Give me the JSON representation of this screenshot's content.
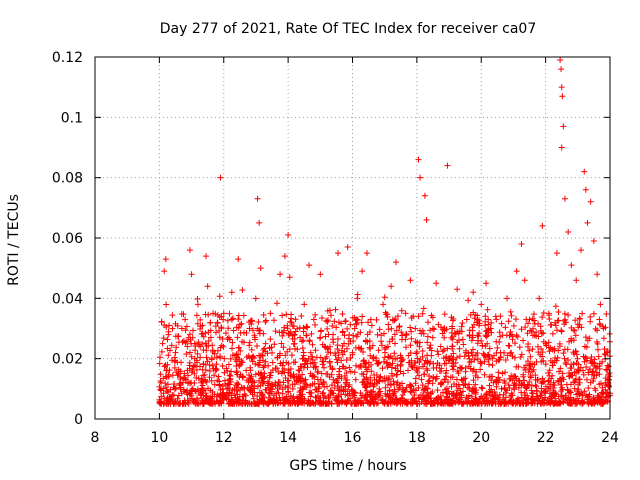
{
  "chart_data": {
    "type": "scatter",
    "title": "Day 277 of 2021, Rate Of TEC Index for receiver ca07",
    "xlabel": "GPS time / hours",
    "ylabel": "ROTI / TECUs",
    "xlim": [
      8,
      24
    ],
    "ylim": [
      0,
      0.12
    ],
    "xticks": [
      "8",
      "10",
      "12",
      "14",
      "16",
      "18",
      "20",
      "22",
      "24"
    ],
    "yticks": [
      "0",
      "0.02",
      "0.04",
      "0.06",
      "0.08",
      "0.1",
      "0.12"
    ],
    "grid": true,
    "marker": "+",
    "color": "#ff0000",
    "series": [
      {
        "name": "ROTI",
        "points": [
          [
            10.05,
            0.012
          ],
          [
            10.1,
            0.025
          ],
          [
            10.15,
            0.049
          ],
          [
            10.2,
            0.053
          ],
          [
            10.25,
            0.018
          ],
          [
            10.3,
            0.031
          ],
          [
            10.4,
            0.008
          ],
          [
            10.5,
            0.022
          ],
          [
            10.6,
            0.015
          ],
          [
            10.7,
            0.03
          ],
          [
            10.85,
            0.009
          ],
          [
            10.95,
            0.056
          ],
          [
            11.0,
            0.048
          ],
          [
            11.1,
            0.02
          ],
          [
            11.2,
            0.038
          ],
          [
            11.3,
            0.012
          ],
          [
            11.45,
            0.054
          ],
          [
            11.5,
            0.044
          ],
          [
            11.6,
            0.027
          ],
          [
            11.75,
            0.016
          ],
          [
            11.9,
            0.08
          ],
          [
            12.0,
            0.035
          ],
          [
            12.1,
            0.01
          ],
          [
            12.25,
            0.042
          ],
          [
            12.35,
            0.021
          ],
          [
            12.45,
            0.053
          ],
          [
            12.6,
            0.014
          ],
          [
            12.8,
            0.03
          ],
          [
            12.95,
            0.011
          ],
          [
            13.05,
            0.073
          ],
          [
            13.1,
            0.065
          ],
          [
            13.15,
            0.05
          ],
          [
            13.3,
            0.025
          ],
          [
            13.45,
            0.035
          ],
          [
            13.6,
            0.012
          ],
          [
            13.75,
            0.048
          ],
          [
            13.9,
            0.054
          ],
          [
            14.0,
            0.061
          ],
          [
            14.05,
            0.047
          ],
          [
            14.2,
            0.028
          ],
          [
            14.35,
            0.016
          ],
          [
            14.5,
            0.038
          ],
          [
            14.65,
            0.051
          ],
          [
            14.8,
            0.033
          ],
          [
            15.0,
            0.048
          ],
          [
            15.1,
            0.019
          ],
          [
            15.3,
            0.036
          ],
          [
            15.45,
            0.012
          ],
          [
            15.55,
            0.055
          ],
          [
            15.7,
            0.029
          ],
          [
            15.85,
            0.057
          ],
          [
            16.0,
            0.022
          ],
          [
            16.15,
            0.04
          ],
          [
            16.3,
            0.049
          ],
          [
            16.45,
            0.055
          ],
          [
            16.6,
            0.031
          ],
          [
            16.75,
            0.013
          ],
          [
            16.95,
            0.038
          ],
          [
            17.1,
            0.024
          ],
          [
            17.2,
            0.044
          ],
          [
            17.35,
            0.052
          ],
          [
            17.5,
            0.018
          ],
          [
            17.65,
            0.035
          ],
          [
            17.8,
            0.046
          ],
          [
            17.95,
            0.03
          ],
          [
            18.05,
            0.086
          ],
          [
            18.1,
            0.08
          ],
          [
            18.25,
            0.074
          ],
          [
            18.3,
            0.066
          ],
          [
            18.45,
            0.021
          ],
          [
            18.6,
            0.045
          ],
          [
            18.75,
            0.012
          ],
          [
            18.95,
            0.084
          ],
          [
            19.1,
            0.03
          ],
          [
            19.25,
            0.043
          ],
          [
            19.4,
            0.017
          ],
          [
            19.55,
            0.033
          ],
          [
            19.75,
            0.042
          ],
          [
            19.9,
            0.026
          ],
          [
            20.0,
            0.038
          ],
          [
            20.15,
            0.045
          ],
          [
            20.3,
            0.014
          ],
          [
            20.45,
            0.034
          ],
          [
            20.6,
            0.022
          ],
          [
            20.8,
            0.04
          ],
          [
            20.95,
            0.028
          ],
          [
            21.1,
            0.049
          ],
          [
            21.25,
            0.058
          ],
          [
            21.35,
            0.046
          ],
          [
            21.5,
            0.033
          ],
          [
            21.65,
            0.018
          ],
          [
            21.8,
            0.04
          ],
          [
            21.9,
            0.064
          ],
          [
            22.0,
            0.025
          ],
          [
            22.1,
            0.035
          ],
          [
            22.25,
            0.012
          ],
          [
            22.35,
            0.055
          ],
          [
            22.45,
            0.119
          ],
          [
            22.48,
            0.116
          ],
          [
            22.5,
            0.11
          ],
          [
            22.52,
            0.107
          ],
          [
            22.55,
            0.097
          ],
          [
            22.5,
            0.09
          ],
          [
            22.6,
            0.073
          ],
          [
            22.7,
            0.062
          ],
          [
            22.8,
            0.051
          ],
          [
            22.95,
            0.046
          ],
          [
            23.1,
            0.056
          ],
          [
            23.2,
            0.082
          ],
          [
            23.25,
            0.076
          ],
          [
            23.3,
            0.065
          ],
          [
            23.4,
            0.072
          ],
          [
            23.5,
            0.059
          ],
          [
            23.6,
            0.048
          ],
          [
            23.7,
            0.038
          ],
          [
            23.8,
            0.03
          ],
          [
            23.9,
            0.022
          ],
          [
            23.95,
            0.012
          ]
        ]
      }
    ]
  }
}
